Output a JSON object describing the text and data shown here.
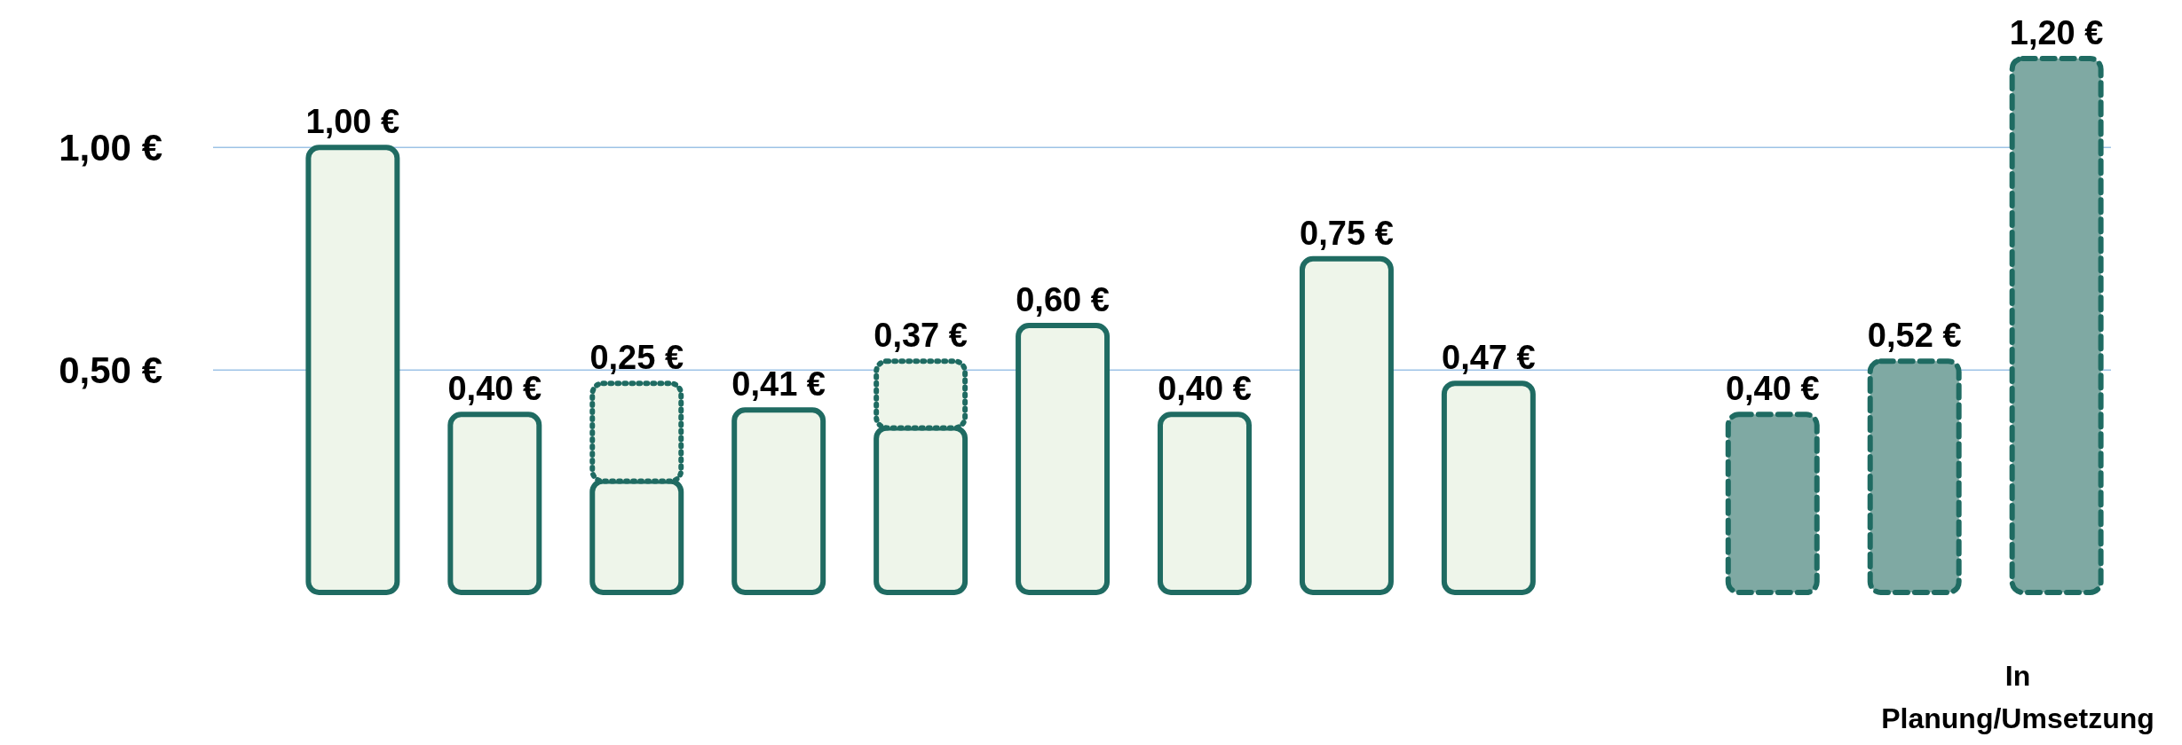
{
  "chart_data": {
    "type": "bar",
    "stacked": true,
    "categories": [
      null,
      null,
      null,
      null,
      null,
      null,
      null,
      null,
      null,
      null,
      null,
      null,
      null
    ],
    "series": [
      {
        "color": "#eef5ea",
        "line_style": "solid",
        "values": [
          1.0,
          0.4,
          0.25,
          0.41,
          0.37,
          0.6,
          0.4,
          0.75,
          0.47,
          null,
          null,
          null,
          null
        ],
        "value_labels": [
          "1,00 €",
          "0,40 €",
          "0,25 €",
          "0,41 €",
          "0,37 €",
          "0,60 €",
          "0,40 €",
          "0,75 €",
          "0,47 €",
          null,
          null,
          null,
          null
        ]
      },
      {
        "color": "#eef5ea",
        "line_style": "dotted",
        "values": [
          null,
          null,
          0.22,
          null,
          0.15,
          null,
          null,
          null,
          null,
          null,
          null,
          null,
          null
        ]
      },
      {
        "color": "#7fa9a3",
        "line_style": "dashed",
        "values": [
          null,
          null,
          null,
          null,
          null,
          null,
          null,
          null,
          null,
          null,
          0.4,
          0.52,
          1.2
        ],
        "value_labels": [
          null,
          null,
          null,
          null,
          null,
          null,
          null,
          null,
          null,
          null,
          "0,40 €",
          "0,52 €",
          "1,20 €"
        ]
      }
    ],
    "ylim": [
      0,
      1.2
    ],
    "yticks": [
      {
        "value": 0.5,
        "label": "0,50 €"
      },
      {
        "value": 1,
        "label": "1,00 €"
      }
    ],
    "grid": "y",
    "annotations": [
      "In Planung/Umsetzung"
    ]
  }
}
